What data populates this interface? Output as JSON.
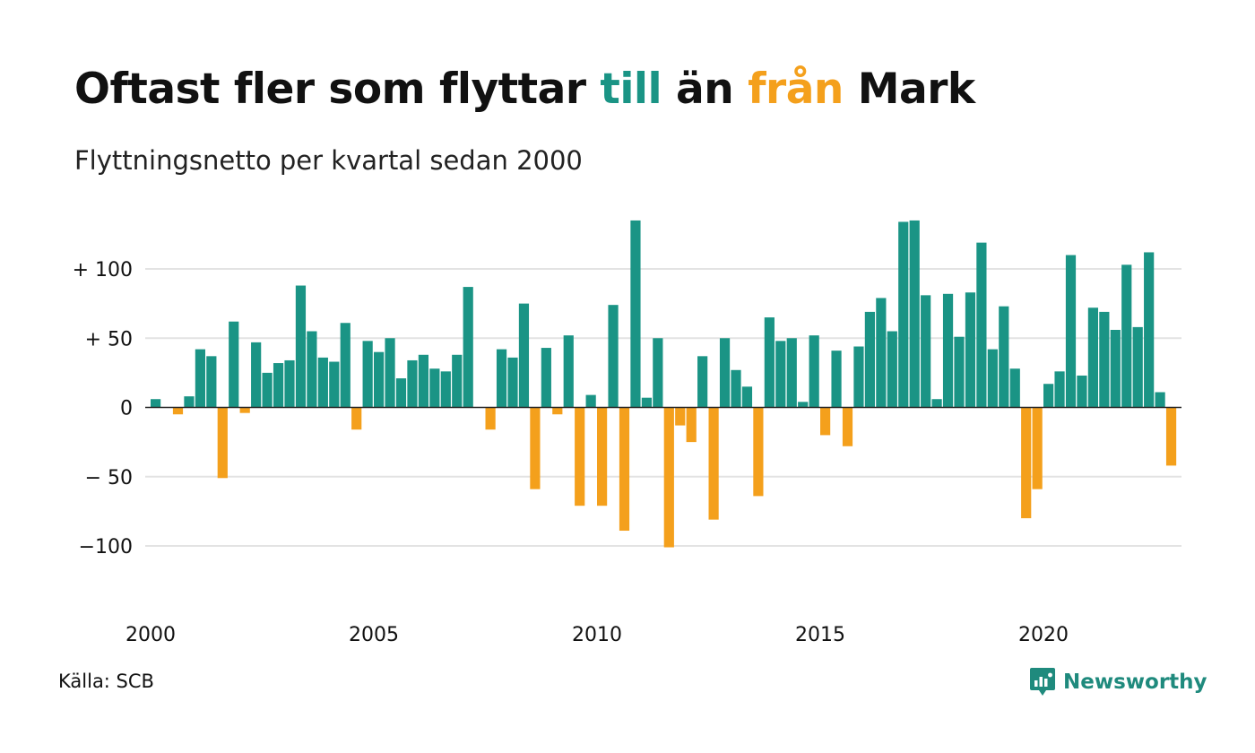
{
  "title": {
    "part1": "Oftast fler som flyttar ",
    "highlight_positive": "till",
    "part2": " än ",
    "highlight_negative": "från",
    "part3": " Mark"
  },
  "subtitle": "Flyttningsnetto per kvartal sedan 2000",
  "source": "Källa: SCB",
  "brand": "Newsworthy",
  "colors": {
    "positive": "#1a9485",
    "negative": "#f4a01c",
    "grid": "#e3e3e3",
    "zero_line": "#222222",
    "brand": "#1f8a7d"
  },
  "chart_data": {
    "type": "bar",
    "title": "Oftast fler som flyttar till än från Mark",
    "subtitle": "Flyttningsnetto per kvartal sedan 2000",
    "x_start": "2000 Q1",
    "x_tick_labels": [
      "2000",
      "2005",
      "2010",
      "2015",
      "2020"
    ],
    "y_ticks": [
      100,
      50,
      0,
      -50,
      -100
    ],
    "y_tick_labels": [
      "+ 100",
      "+  50",
      "0",
      "− 50",
      "−100"
    ],
    "ylim": [
      -100,
      135
    ],
    "grid": true,
    "values": [
      6,
      0,
      -5,
      8,
      42,
      37,
      -51,
      62,
      -4,
      47,
      25,
      32,
      34,
      88,
      55,
      36,
      33,
      61,
      -16,
      48,
      40,
      50,
      21,
      34,
      38,
      28,
      26,
      38,
      87,
      0,
      -16,
      42,
      36,
      75,
      -59,
      43,
      -5,
      52,
      -71,
      9,
      -71,
      74,
      -89,
      135,
      7,
      50,
      -101,
      -13,
      -25,
      37,
      -81,
      50,
      27,
      15,
      -64,
      65,
      48,
      50,
      4,
      52,
      -20,
      41,
      -28,
      44,
      69,
      79,
      55,
      134,
      135,
      81,
      6,
      82,
      51,
      83,
      119,
      42,
      73,
      28,
      -80,
      -59,
      17,
      26,
      110,
      23,
      72,
      69,
      56,
      103,
      58,
      112,
      11,
      -42
    ]
  }
}
